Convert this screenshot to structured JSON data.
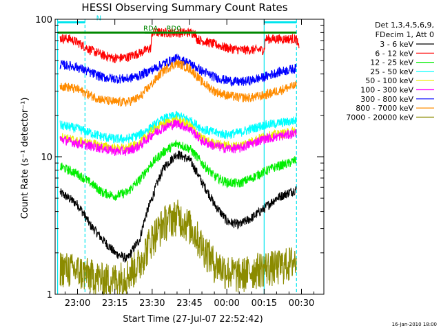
{
  "chart_data": {
    "type": "line",
    "title": "HESSI Observing Summary Count Rates",
    "xlabel": "Start Time (27-Jul-07 22:52:42)",
    "ylabel": "Count Rate (s⁻¹ detector⁻¹)",
    "yscale": "log",
    "ylim": [
      1,
      100
    ],
    "xlim_minutes": [
      -9,
      99
    ],
    "x_ticks": [
      {
        "label": "23:00",
        "min": 0
      },
      {
        "label": "23:15",
        "min": 15
      },
      {
        "label": "23:30",
        "min": 30
      },
      {
        "label": "23:45",
        "min": 45
      },
      {
        "label": "00:00",
        "min": 60
      },
      {
        "label": "00:15",
        "min": 75
      },
      {
        "label": "00:30",
        "min": 90
      }
    ],
    "y_ticks": [
      {
        "label": "1",
        "value": 1
      },
      {
        "label": "10",
        "value": 10
      },
      {
        "label": "100",
        "value": 100
      }
    ],
    "legend_header": [
      "Det 1,3,4,5,6,9,",
      "FDecim 1, Att 0"
    ],
    "legend_position": "right",
    "grid": false,
    "series": [
      {
        "name": "3 - 6 keV",
        "color": "#000000",
        "x": [
          -7,
          0,
          5,
          10,
          15,
          20,
          25,
          30,
          35,
          40,
          45,
          50,
          55,
          60,
          65,
          70,
          75,
          80,
          85,
          88
        ],
        "y": [
          5.5,
          4.5,
          3.2,
          2.5,
          2.0,
          1.8,
          2.5,
          5.0,
          8.5,
          10.5,
          9.5,
          6.5,
          4.5,
          3.4,
          3.2,
          3.6,
          4.2,
          5.0,
          5.5,
          5.8
        ]
      },
      {
        "name": "6 - 12 keV",
        "color": "#ff0000",
        "x": [
          -7,
          -3,
          0,
          5,
          10,
          15,
          20,
          25,
          29.5,
          30,
          35,
          40,
          45,
          47,
          48,
          50,
          55,
          60,
          65,
          70,
          75,
          75.5,
          80,
          85,
          88,
          89
        ],
        "y": [
          73,
          72,
          68,
          60,
          55,
          52,
          53,
          57,
          62,
          80,
          80,
          80,
          80,
          80,
          72,
          70,
          66,
          62,
          60,
          60,
          60,
          72,
          72,
          72,
          72,
          60
        ]
      },
      {
        "name": "12 - 25 keV",
        "color": "#00ee00",
        "x": [
          -7,
          0,
          5,
          10,
          15,
          20,
          25,
          30,
          35,
          40,
          45,
          50,
          55,
          60,
          65,
          70,
          75,
          80,
          85,
          88
        ],
        "y": [
          8.5,
          7.5,
          6.5,
          5.5,
          5.2,
          5.5,
          6.8,
          9.0,
          11.0,
          12.5,
          11.5,
          9.0,
          7.2,
          6.5,
          6.4,
          7.0,
          7.8,
          8.5,
          9.0,
          9.5
        ]
      },
      {
        "name": "25 - 50 keV",
        "color": "#00ffff",
        "x": [
          -7,
          0,
          5,
          10,
          15,
          20,
          25,
          30,
          35,
          40,
          45,
          50,
          55,
          60,
          65,
          70,
          75,
          80,
          85,
          88
        ],
        "y": [
          17,
          16,
          15,
          14,
          13.5,
          13.5,
          14.5,
          16.5,
          19,
          20,
          18.5,
          16,
          15,
          14.5,
          15,
          16,
          17,
          17.5,
          18,
          18.5
        ]
      },
      {
        "name": "50 - 100 keV",
        "color": "#eeee00",
        "x": [
          -7,
          0,
          5,
          10,
          15,
          20,
          25,
          30,
          35,
          40,
          45,
          50,
          55,
          60,
          65,
          70,
          75,
          80,
          85,
          88
        ],
        "y": [
          14,
          13,
          12.5,
          12,
          11.5,
          11.5,
          12.5,
          15.5,
          17.5,
          18.5,
          17,
          13.5,
          12.5,
          12,
          12,
          13,
          14,
          14.5,
          15,
          15.5
        ]
      },
      {
        "name": "100 - 300 keV",
        "color": "#ff00ff",
        "x": [
          -7,
          0,
          5,
          10,
          15,
          20,
          25,
          30,
          35,
          40,
          45,
          50,
          55,
          60,
          65,
          70,
          75,
          80,
          85,
          88
        ],
        "y": [
          13.5,
          12.5,
          12,
          11.5,
          11,
          11,
          12,
          14.5,
          16.5,
          17.5,
          16,
          13,
          12,
          11.5,
          11.5,
          12.5,
          13.5,
          14,
          14.5,
          15
        ]
      },
      {
        "name": "300 - 800 keV",
        "color": "#0000ff",
        "x": [
          -7,
          0,
          5,
          10,
          15,
          20,
          25,
          30,
          35,
          40,
          45,
          50,
          55,
          60,
          65,
          70,
          75,
          80,
          85,
          88
        ],
        "y": [
          47,
          45,
          41,
          38,
          37,
          37,
          39,
          43,
          48,
          52,
          48,
          42,
          38,
          36,
          35,
          36,
          38,
          41,
          43,
          44
        ]
      },
      {
        "name": "800 - 7000 keV",
        "color": "#ff8c00",
        "x": [
          -7,
          0,
          5,
          10,
          15,
          20,
          25,
          30,
          35,
          40,
          45,
          50,
          55,
          60,
          65,
          70,
          75,
          80,
          85,
          88
        ],
        "y": [
          33,
          31,
          28,
          26,
          25,
          25,
          27,
          34,
          43,
          48,
          44,
          35,
          30,
          28,
          27,
          27,
          28,
          30,
          32,
          33
        ]
      },
      {
        "name": "7000 - 20000 keV",
        "color": "#8b8b00",
        "x": [
          -7,
          0,
          5,
          10,
          15,
          20,
          25,
          30,
          35,
          40,
          45,
          50,
          55,
          60,
          65,
          70,
          75,
          80,
          85,
          88
        ],
        "y": [
          1.6,
          1.5,
          1.4,
          1.3,
          1.3,
          1.4,
          1.7,
          2.6,
          3.4,
          3.8,
          3.2,
          2.3,
          1.7,
          1.5,
          1.4,
          1.5,
          1.6,
          1.6,
          1.7,
          1.8
        ]
      }
    ],
    "annotations": [
      {
        "label": "N",
        "color": "#00e5ee",
        "x_start": -8,
        "x_end": 3,
        "y": 95
      },
      {
        "label": "",
        "color": "#00e5ee",
        "x_start": 75,
        "x_end": 88,
        "y": 95
      },
      {
        "label": "RD0",
        "color": "#008800",
        "x_start": -8,
        "x_end": 88,
        "y": 80
      },
      {
        "label": "RDA",
        "color": "#008800",
        "x_start": 27,
        "x_end": 30,
        "y": 80
      }
    ],
    "vlines": [
      {
        "x": -8,
        "color": "#00e5ee",
        "style": "solid"
      },
      {
        "x": 3,
        "color": "#00e5ee",
        "style": "dashed"
      },
      {
        "x": 75,
        "color": "#00e5ee",
        "style": "solid"
      },
      {
        "x": 88,
        "color": "#00e5ee",
        "style": "dashed"
      }
    ]
  },
  "footer_stamp": "16-Jan-2010 18:00"
}
